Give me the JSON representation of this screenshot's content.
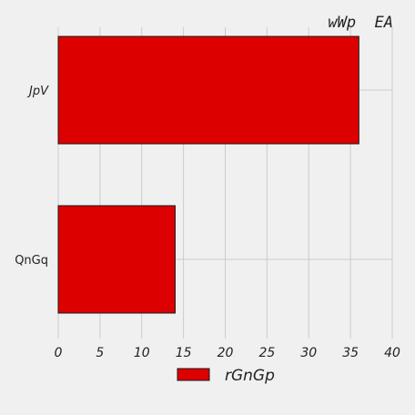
{
  "chart_data": {
    "type": "bar",
    "orientation": "horizontal",
    "title": "wWp  EA",
    "categories": [
      "JpV",
      "QnGq"
    ],
    "series": [
      {
        "name": "rGnGp",
        "values": [
          36,
          14
        ]
      }
    ],
    "xlim": [
      0,
      40
    ],
    "xticks": [
      0,
      5,
      10,
      15,
      20,
      25,
      30,
      35,
      40
    ],
    "grid": true,
    "legend_position": "bottom-center",
    "colors": {
      "bar_fill": "#dd0000",
      "bar_edge": "#1a1a1a",
      "grid": "#cbcbcb",
      "background": "#f0f0f0"
    }
  }
}
